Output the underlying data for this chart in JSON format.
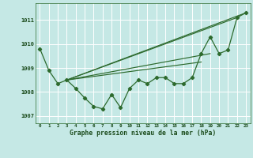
{
  "title": "Graphe pression niveau de la mer (hPa)",
  "background_color": "#c5e8e5",
  "grid_color": "#b0d8d5",
  "line_color": "#2d6a2d",
  "xlim": [
    -0.5,
    23.5
  ],
  "ylim": [
    1006.7,
    1011.7
  ],
  "yticks": [
    1007,
    1008,
    1009,
    1010,
    1011
  ],
  "xticks": [
    0,
    1,
    2,
    3,
    4,
    5,
    6,
    7,
    8,
    9,
    10,
    11,
    12,
    13,
    14,
    15,
    16,
    17,
    18,
    19,
    20,
    21,
    22,
    23
  ],
  "main_series_x": [
    0,
    1,
    2,
    3,
    4,
    5,
    6,
    7,
    8,
    9,
    10,
    11,
    12,
    13,
    14,
    15,
    16,
    17,
    18,
    19,
    20,
    21,
    22,
    23
  ],
  "main_series_y": [
    1009.8,
    1008.9,
    1008.35,
    1008.5,
    1008.15,
    1007.75,
    1007.4,
    1007.3,
    1007.9,
    1007.35,
    1008.15,
    1008.5,
    1008.35,
    1008.6,
    1008.6,
    1008.35,
    1008.35,
    1008.6,
    1009.6,
    1010.3,
    1009.6,
    1009.75,
    1011.1,
    1011.3
  ],
  "trend1_x": [
    3,
    23
  ],
  "trend1_y": [
    1008.5,
    1011.3
  ],
  "trend2_x": [
    3,
    22
  ],
  "trend2_y": [
    1008.5,
    1011.1
  ],
  "trend3_x": [
    3,
    19
  ],
  "trend3_y": [
    1008.5,
    1009.6
  ],
  "trend4_x": [
    3,
    18
  ],
  "trend4_y": [
    1008.5,
    1009.25
  ]
}
